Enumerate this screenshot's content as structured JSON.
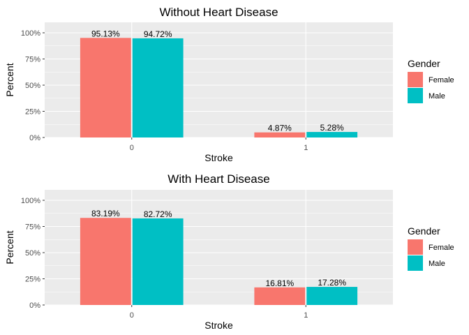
{
  "chart_data": [
    {
      "type": "bar",
      "title": "Without Heart Disease",
      "xlabel": "Stroke",
      "ylabel": "Percent",
      "categories": [
        "0",
        "1"
      ],
      "ylim": [
        0,
        1.1
      ],
      "yticks": [
        "0%",
        "25%",
        "50%",
        "75%",
        "100%"
      ],
      "grid": true,
      "legend": {
        "title": "Gender",
        "placement": "right"
      },
      "series": [
        {
          "name": "Female",
          "color": "#F8766D",
          "values": [
            0.9513,
            0.0487
          ],
          "labels": [
            "95.13%",
            "4.87%"
          ]
        },
        {
          "name": "Male",
          "color": "#00BFC4",
          "values": [
            0.9472,
            0.0528
          ],
          "labels": [
            "94.72%",
            "5.28%"
          ]
        }
      ]
    },
    {
      "type": "bar",
      "title": "With Heart Disease",
      "xlabel": "Stroke",
      "ylabel": "Percent",
      "categories": [
        "0",
        "1"
      ],
      "ylim": [
        0,
        1.1
      ],
      "yticks": [
        "0%",
        "25%",
        "50%",
        "75%",
        "100%"
      ],
      "grid": true,
      "legend": {
        "title": "Gender",
        "placement": "right"
      },
      "series": [
        {
          "name": "Female",
          "color": "#F8766D",
          "values": [
            0.8319,
            0.1681
          ],
          "labels": [
            "83.19%",
            "16.81%"
          ]
        },
        {
          "name": "Male",
          "color": "#00BFC4",
          "values": [
            0.8272,
            0.1728
          ],
          "labels": [
            "82.72%",
            "17.28%"
          ]
        }
      ]
    }
  ],
  "colors": {
    "panel_background": "#EBEBEB",
    "grid": "#FFFFFF",
    "tick_text": "#4D4D4D"
  }
}
